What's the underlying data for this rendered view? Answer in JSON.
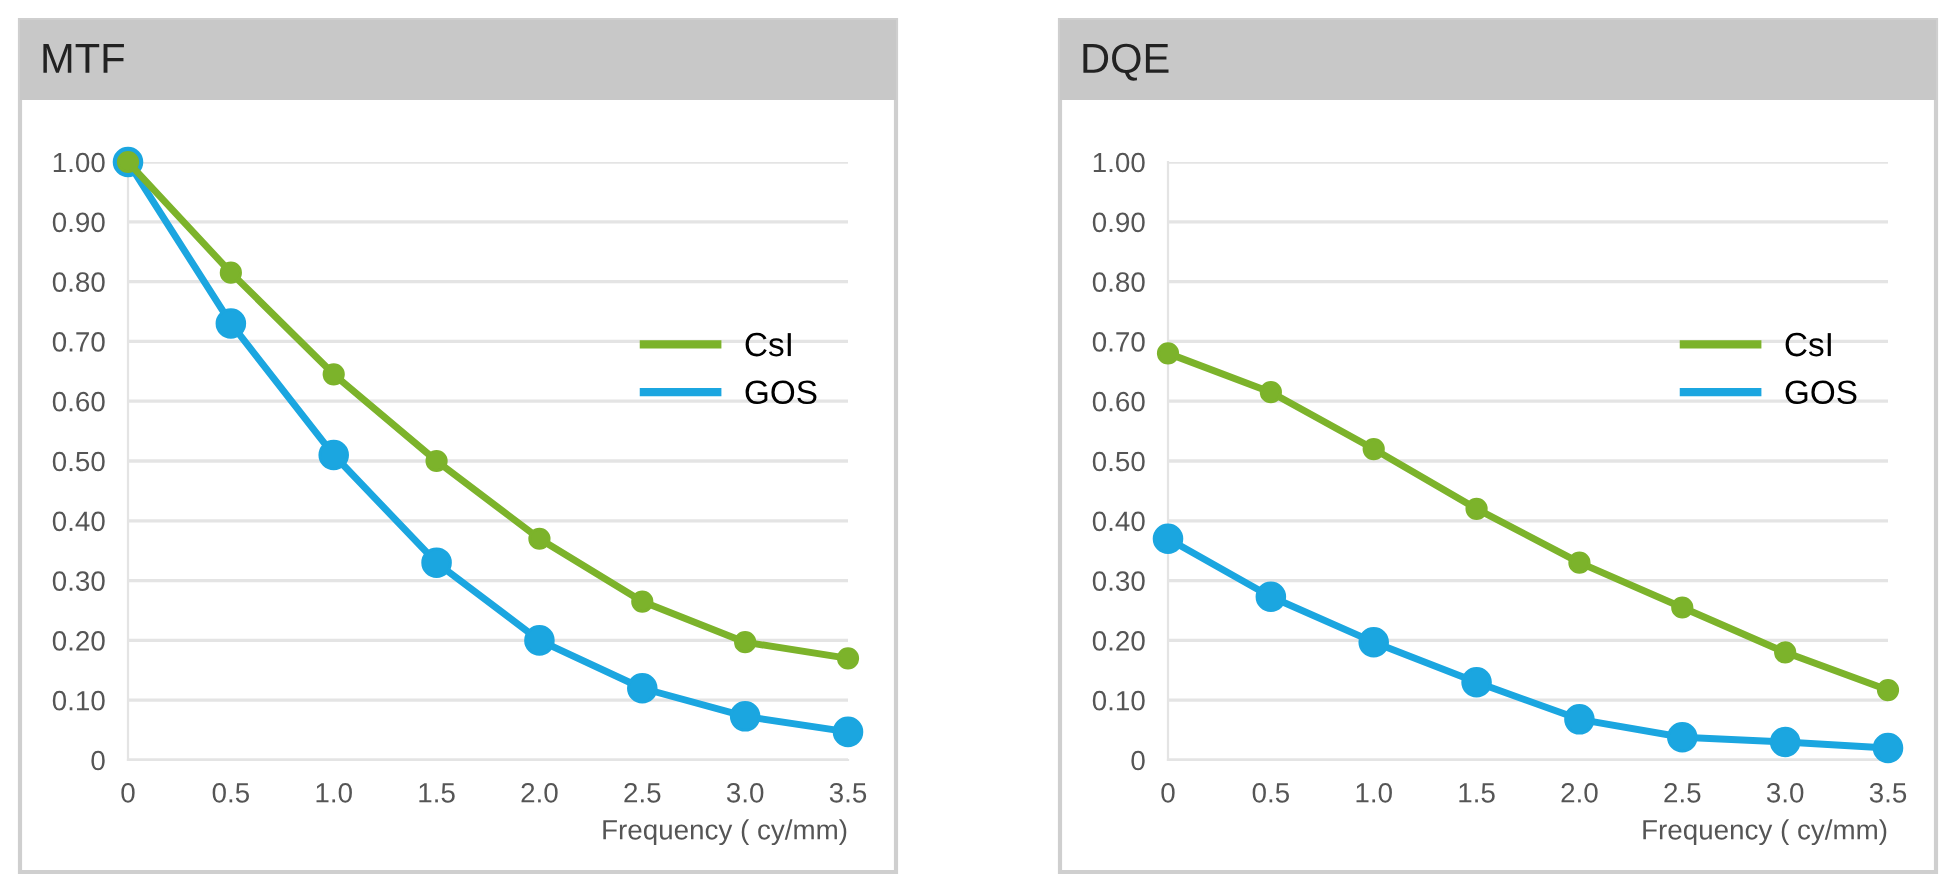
{
  "chart_data": [
    {
      "type": "line",
      "title": "MTF",
      "xlabel": "Frequency ( cy/mm)",
      "x": [
        0,
        0.5,
        1.0,
        1.5,
        2.0,
        2.5,
        3.0,
        3.5
      ],
      "series": [
        {
          "name": "CsI",
          "color": "#7cb32b",
          "values": [
            1.0,
            0.815,
            0.645,
            0.5,
            0.37,
            0.265,
            0.197,
            0.17
          ]
        },
        {
          "name": "GOS",
          "color": "#1ba6e0",
          "values": [
            1.0,
            0.73,
            0.51,
            0.33,
            0.2,
            0.12,
            0.073,
            0.047
          ]
        }
      ],
      "xlim": [
        0,
        3.5
      ],
      "xticks": [
        0,
        0.5,
        {
          "value": 1,
          "label": "1.0"
        },
        1.5,
        {
          "value": 2,
          "label": "2.0"
        },
        2.5,
        {
          "value": 3,
          "label": "3.0"
        },
        3.5
      ],
      "ylim": [
        0,
        1
      ],
      "yticks": [
        0,
        {
          "value": 0.1,
          "label": "0.10"
        },
        {
          "value": 0.2,
          "label": "0.20"
        },
        {
          "value": 0.3,
          "label": "0.30"
        },
        {
          "value": 0.4,
          "label": "0.40"
        },
        {
          "value": 0.5,
          "label": "0.50"
        },
        {
          "value": 0.6,
          "label": "0.60"
        },
        {
          "value": 0.7,
          "label": "0.70"
        },
        {
          "value": 0.8,
          "label": "0.80"
        },
        {
          "value": 0.9,
          "label": "0.90"
        },
        {
          "value": 1,
          "label": "1.00"
        }
      ],
      "grid": "y",
      "legend": "right",
      "marker": "circle",
      "line_style": "solid"
    },
    {
      "type": "line",
      "title": "DQE",
      "xlabel": "Frequency ( cy/mm)",
      "x": [
        0,
        0.5,
        1.0,
        1.5,
        2.0,
        2.5,
        3.0,
        3.5
      ],
      "series": [
        {
          "name": "CsI",
          "color": "#7cb32b",
          "values": [
            0.68,
            0.615,
            0.52,
            0.42,
            0.33,
            0.255,
            0.18,
            0.117
          ]
        },
        {
          "name": "GOS",
          "color": "#1ba6e0",
          "values": [
            0.37,
            0.273,
            0.197,
            0.13,
            0.068,
            0.038,
            0.03,
            0.02
          ]
        }
      ],
      "xlim": [
        0,
        3.5
      ],
      "xticks": [
        0,
        0.5,
        {
          "value": 1,
          "label": "1.0"
        },
        1.5,
        {
          "value": 2,
          "label": "2.0"
        },
        2.5,
        {
          "value": 3,
          "label": "3.0"
        },
        3.5
      ],
      "ylim": [
        0,
        1
      ],
      "yticks": [
        0,
        {
          "value": 0.1,
          "label": "0.10"
        },
        {
          "value": 0.2,
          "label": "0.20"
        },
        {
          "value": 0.3,
          "label": "0.30"
        },
        {
          "value": 0.4,
          "label": "0.40"
        },
        {
          "value": 0.5,
          "label": "0.50"
        },
        {
          "value": 0.6,
          "label": "0.60"
        },
        {
          "value": 0.7,
          "label": "0.70"
        },
        {
          "value": 0.8,
          "label": "0.80"
        },
        {
          "value": 0.9,
          "label": "0.90"
        },
        {
          "value": 1,
          "label": "1.00"
        }
      ],
      "grid": "y",
      "legend": "right",
      "marker": "circle",
      "line_style": "solid"
    }
  ]
}
